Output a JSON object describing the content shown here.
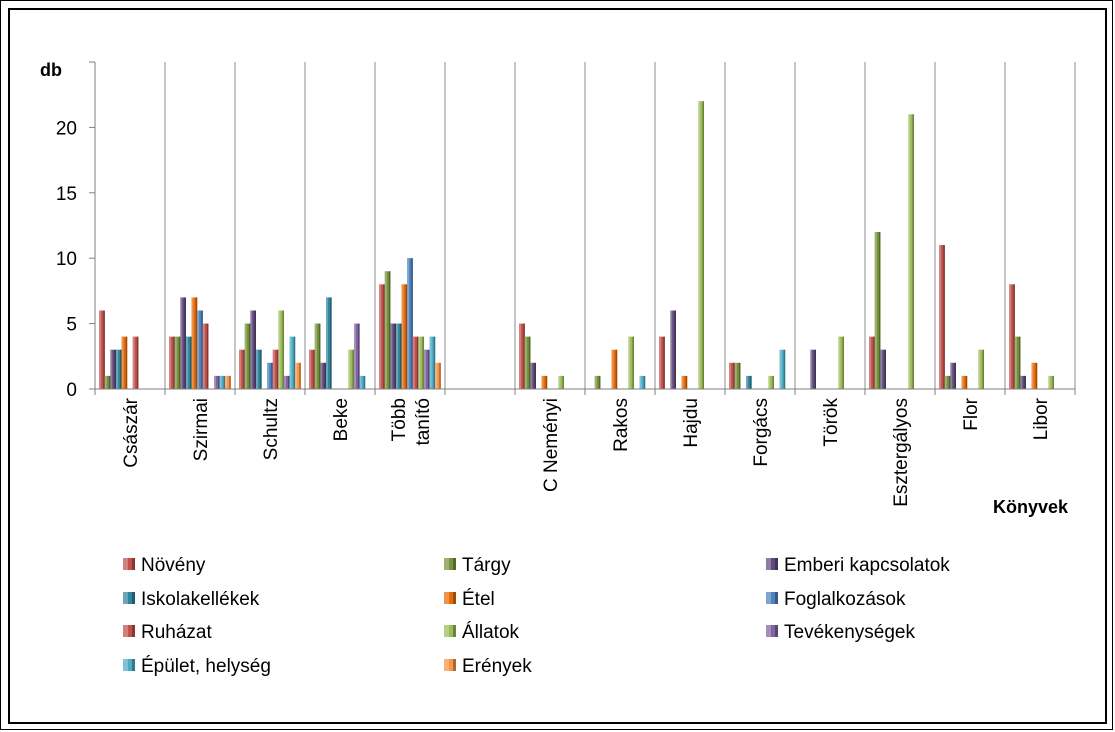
{
  "chart_data": {
    "type": "bar",
    "ylabel": "db",
    "xlabel": "Könyvek",
    "ylim": [
      0,
      25
    ],
    "yticks": [
      0,
      5,
      10,
      15,
      20
    ],
    "grid": "vertical separators between categories",
    "legend_position": "bottom",
    "categories": [
      "Császár",
      "Szirmai",
      "Schultz",
      "Beke",
      "Több tanító",
      "",
      "C Neményi",
      "Rakos",
      "Hajdu",
      "Forgács",
      "Török",
      "Esztergályos",
      "Flor",
      "Libor"
    ],
    "category_lines": [
      [
        "Császár"
      ],
      [
        "Szirmai"
      ],
      [
        "Schultz"
      ],
      [
        "Beke"
      ],
      [
        "Több",
        "tanító"
      ],
      [],
      [
        "C Neményi"
      ],
      [
        "Rakos"
      ],
      [
        "Hajdu"
      ],
      [
        "Forgács"
      ],
      [
        "Török"
      ],
      [
        "Esztergályos"
      ],
      [
        "Flor"
      ],
      [
        "Libor"
      ]
    ],
    "series": [
      {
        "name": "Növény",
        "color": "#c0504d",
        "values": [
          6,
          4,
          3,
          3,
          8,
          0,
          5,
          0,
          4,
          2,
          0,
          4,
          11,
          8
        ]
      },
      {
        "name": "Tárgy",
        "color": "#77933c",
        "values": [
          1,
          4,
          5,
          5,
          9,
          0,
          4,
          1,
          0,
          2,
          0,
          12,
          1,
          4
        ]
      },
      {
        "name": "Emberi kapcsolatok",
        "color": "#604a7b",
        "values": [
          3,
          7,
          6,
          2,
          5,
          0,
          2,
          0,
          6,
          0,
          3,
          3,
          2,
          1
        ]
      },
      {
        "name": "Iskolakellékek",
        "color": "#31859c",
        "values": [
          3,
          4,
          3,
          7,
          5,
          0,
          0,
          0,
          0,
          1,
          0,
          0,
          0,
          0
        ]
      },
      {
        "name": "Étel",
        "color": "#e46c0a",
        "values": [
          4,
          7,
          0,
          0,
          8,
          0,
          1,
          3,
          1,
          0,
          0,
          0,
          1,
          2
        ]
      },
      {
        "name": "Foglalkozások",
        "color": "#4f81bd",
        "values": [
          0,
          6,
          2,
          0,
          10,
          0,
          0,
          0,
          0,
          0,
          0,
          0,
          0,
          0
        ]
      },
      {
        "name": "Ruházat",
        "color": "#c0504d",
        "values": [
          4,
          5,
          3,
          0,
          4,
          0,
          0,
          0,
          0,
          0,
          0,
          0,
          0,
          0
        ]
      },
      {
        "name": "Állatok",
        "color": "#9bbb59",
        "values": [
          0,
          0,
          6,
          3,
          4,
          0,
          1,
          4,
          22,
          1,
          4,
          21,
          3,
          1
        ]
      },
      {
        "name": "Tevékenységek",
        "color": "#8064a2",
        "values": [
          0,
          1,
          1,
          5,
          3,
          0,
          0,
          0,
          0,
          0,
          0,
          0,
          0,
          0
        ]
      },
      {
        "name": "Épület, helység",
        "color": "#4bacc6",
        "values": [
          0,
          1,
          4,
          1,
          4,
          0,
          0,
          1,
          0,
          3,
          0,
          0,
          0,
          0
        ]
      },
      {
        "name": "Erények",
        "color": "#f79646",
        "values": [
          0,
          1,
          2,
          0,
          2,
          0,
          0,
          0,
          0,
          0,
          0,
          0,
          0,
          0
        ]
      }
    ]
  }
}
